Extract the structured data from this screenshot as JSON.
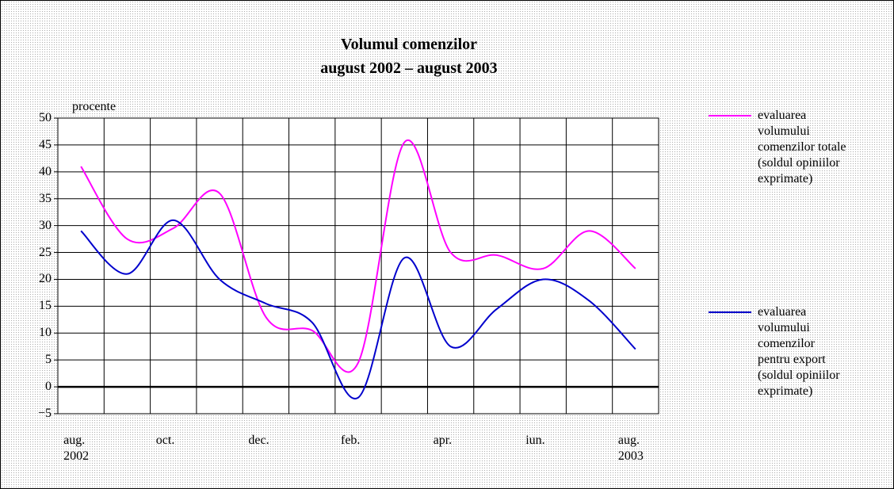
{
  "chart_data": {
    "type": "line",
    "title": "Volumul comenzilor\naugust 2002 – august 2003",
    "ylabel": "procente",
    "categories": [
      "aug.\n2002",
      null,
      "oct.",
      null,
      "dec.",
      null,
      "feb.",
      null,
      "apr.",
      null,
      "iun.",
      null,
      "aug.\n2003"
    ],
    "series": [
      {
        "name": "evaluarea\nvolumului\ncomenzilor totale\n(soldul opiniilor\nexprimate)",
        "color": "#ff00ff",
        "values": [
          41,
          27.5,
          29.5,
          36,
          13,
          10.5,
          4.5,
          45.5,
          25,
          24.5,
          22,
          29,
          22
        ]
      },
      {
        "name": "evaluarea\nvolumului\ncomenzilor\npentru export\n(soldul opiniilor\nexprimate)",
        "color": "#0000cc",
        "values": [
          29,
          21,
          31,
          20,
          15.5,
          12,
          -2,
          24,
          7.5,
          14.5,
          20,
          16,
          7
        ]
      }
    ],
    "ylim": [
      -5,
      50
    ],
    "yticks": [
      {
        "value": -5,
        "label": "−5"
      },
      0,
      5,
      10,
      15,
      20,
      25,
      30,
      35,
      40,
      45,
      50
    ],
    "grid": true
  }
}
